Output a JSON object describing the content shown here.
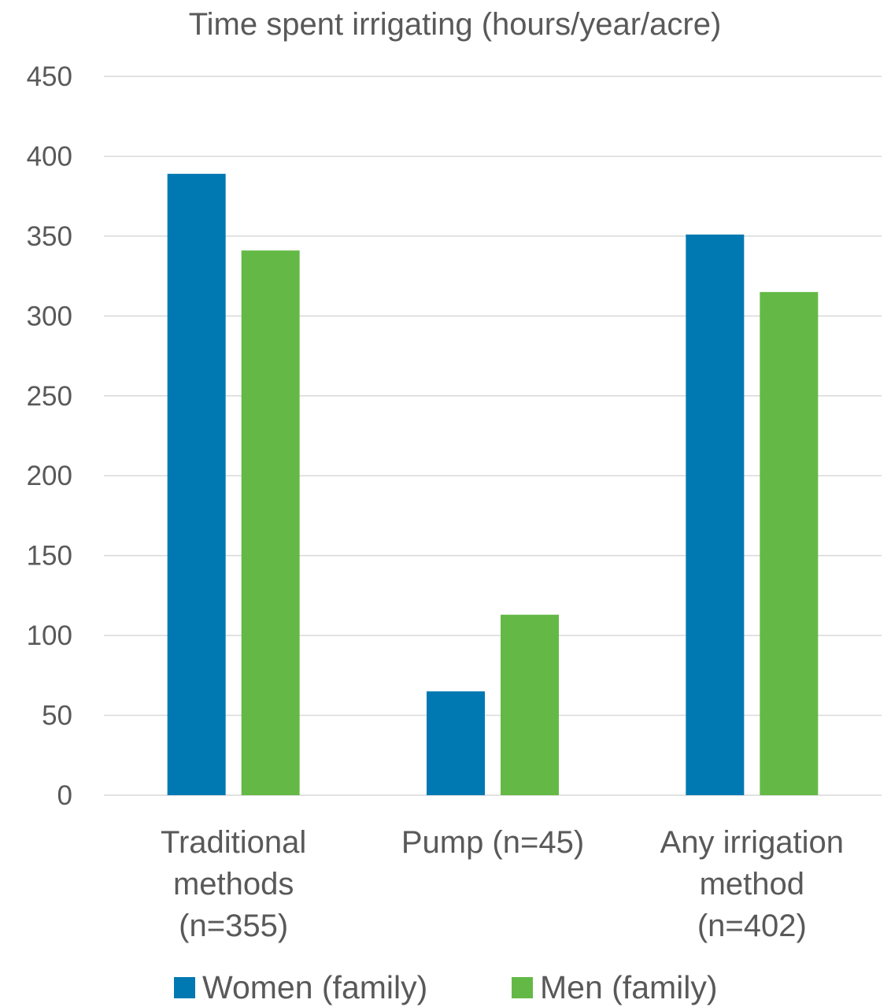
{
  "chart_data": {
    "type": "bar",
    "title": "Time spent irrigating (hours/year/acre)",
    "xlabel": "",
    "ylabel": "",
    "ylim": [
      0,
      450
    ],
    "yticks": [
      0,
      50,
      100,
      150,
      200,
      250,
      300,
      350,
      400,
      450
    ],
    "categories": [
      [
        "Traditional",
        "methods",
        "(n=355)"
      ],
      [
        "Pump (n=45)"
      ],
      [
        "Any irrigation",
        "method",
        "(n=402)"
      ]
    ],
    "series": [
      {
        "name": "Women (family)",
        "color": "#0079b2",
        "values": [
          389,
          65,
          351
        ]
      },
      {
        "name": "Men (family)",
        "color": "#64b946",
        "values": [
          341,
          113,
          315
        ]
      }
    ],
    "grid": true,
    "legend_position": "bottom"
  }
}
